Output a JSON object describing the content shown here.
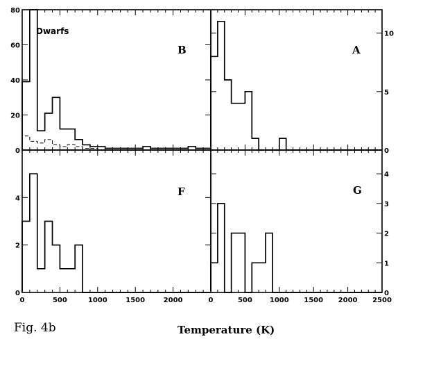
{
  "caption": "Fig. 4b",
  "xlabel": "Temperature (K)",
  "chart_data": [
    {
      "type": "histogram",
      "panel": "B",
      "annotation": "Dwarfs",
      "xlim": [
        0,
        2500
      ],
      "ylim": [
        0,
        80
      ],
      "y_ticks": [
        0,
        20,
        40,
        60,
        80
      ],
      "y_tick_labels": [
        "0",
        "20",
        "40",
        "60",
        "80"
      ],
      "bin_edges": [
        0,
        100,
        200,
        300,
        400,
        500,
        600,
        700,
        800,
        900,
        1000,
        1100,
        1200,
        1300,
        1400,
        1500,
        1600,
        1700,
        1800,
        1900,
        2000,
        2100,
        2200,
        2300,
        2400,
        2500
      ],
      "series": [
        {
          "style": "solid",
          "values": [
            39,
            80,
            11,
            21,
            30,
            12,
            12,
            6,
            3,
            2,
            2,
            1,
            1,
            1,
            1,
            1,
            2,
            1,
            1,
            1,
            1,
            1,
            2,
            1,
            1
          ]
        },
        {
          "style": "dashed",
          "values": [
            8,
            5,
            4,
            6,
            3,
            2,
            3,
            2,
            1,
            1,
            0,
            0,
            0,
            0,
            0,
            0,
            0,
            0,
            0,
            0,
            0,
            0,
            0,
            0,
            0
          ]
        }
      ]
    },
    {
      "type": "histogram",
      "panel": "A",
      "xlim": [
        0,
        2500
      ],
      "ylim": [
        0,
        12
      ],
      "y_ticks": [
        0,
        5,
        10
      ],
      "y_tick_labels": [
        "0",
        "5",
        "10"
      ],
      "bin_edges": [
        0,
        100,
        200,
        300,
        400,
        500,
        600,
        700,
        800,
        900,
        1000,
        1100,
        1200,
        1300,
        1400,
        1500,
        1600,
        1700,
        1800,
        1900,
        2000,
        2100,
        2200,
        2300,
        2400,
        2500
      ],
      "series": [
        {
          "style": "solid",
          "values": [
            8,
            11,
            6,
            4,
            4,
            5,
            1,
            0,
            0,
            0,
            1,
            0,
            0,
            0,
            0,
            0,
            0,
            0,
            0,
            0,
            0,
            0,
            0,
            0,
            0
          ]
        }
      ]
    },
    {
      "type": "histogram",
      "panel": "F",
      "xlim": [
        0,
        2500
      ],
      "ylim": [
        0,
        6
      ],
      "x_ticks": [
        0,
        500,
        1000,
        1500,
        2000
      ],
      "x_tick_labels": [
        "0",
        "500",
        "1000",
        "1500",
        "2000"
      ],
      "y_ticks": [
        0,
        2,
        4
      ],
      "y_tick_labels": [
        "0",
        "2",
        "4"
      ],
      "bin_edges": [
        0,
        100,
        200,
        300,
        400,
        500,
        600,
        700,
        800,
        900,
        1000,
        1100,
        1200,
        1300,
        1400,
        1500,
        1600,
        1700,
        1800,
        1900,
        2000,
        2100,
        2200,
        2300,
        2400,
        2500
      ],
      "series": [
        {
          "style": "solid",
          "values": [
            3,
            5,
            1,
            3,
            2,
            1,
            1,
            2,
            0,
            0,
            0,
            0,
            0,
            0,
            0,
            0,
            0,
            0,
            0,
            0,
            0,
            0,
            0,
            0,
            0
          ]
        }
      ]
    },
    {
      "type": "histogram",
      "panel": "G",
      "xlim": [
        0,
        2500
      ],
      "ylim": [
        0,
        4.8
      ],
      "x_ticks": [
        0,
        500,
        1000,
        1500,
        2000,
        2500
      ],
      "x_tick_labels": [
        "0",
        "500",
        "1000",
        "1500",
        "2000",
        "2500"
      ],
      "y_ticks": [
        0,
        1,
        2,
        3,
        4
      ],
      "y_tick_labels": [
        "0",
        "1",
        "2",
        "3",
        "4"
      ],
      "bin_edges": [
        0,
        100,
        200,
        300,
        400,
        500,
        600,
        700,
        800,
        900,
        1000,
        1100,
        1200,
        1300,
        1400,
        1500,
        1600,
        1700,
        1800,
        1900,
        2000,
        2100,
        2200,
        2300,
        2400,
        2500
      ],
      "series": [
        {
          "style": "solid",
          "values": [
            1,
            3,
            0,
            2,
            2,
            0,
            1,
            1,
            2,
            0,
            0,
            0,
            0,
            0,
            0,
            0,
            0,
            0,
            0,
            0,
            0,
            0,
            0,
            0,
            0
          ]
        }
      ]
    }
  ]
}
